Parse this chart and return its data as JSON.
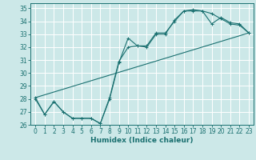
{
  "title": "",
  "xlabel": "Humidex (Indice chaleur)",
  "ylabel": "",
  "bg_color": "#cce8e8",
  "grid_color": "#ffffff",
  "line_color": "#1a7070",
  "xlim": [
    -0.5,
    23.5
  ],
  "ylim": [
    26,
    35.4
  ],
  "xticks": [
    0,
    1,
    2,
    3,
    4,
    5,
    6,
    7,
    8,
    9,
    10,
    11,
    12,
    13,
    14,
    15,
    16,
    17,
    18,
    19,
    20,
    21,
    22,
    23
  ],
  "yticks": [
    26,
    27,
    28,
    29,
    30,
    31,
    32,
    33,
    34,
    35
  ],
  "line1_x": [
    0,
    1,
    2,
    3,
    4,
    5,
    6,
    7,
    8,
    9,
    10,
    11,
    12,
    13,
    14,
    15,
    16,
    17,
    18,
    19,
    20,
    21,
    22,
    23
  ],
  "line1_y": [
    28.0,
    26.8,
    27.8,
    27.0,
    26.5,
    26.5,
    26.5,
    26.1,
    28.0,
    30.8,
    32.7,
    32.1,
    32.1,
    33.1,
    33.1,
    34.0,
    34.8,
    34.8,
    34.8,
    34.6,
    34.2,
    33.8,
    33.7,
    33.1
  ],
  "line2_x": [
    0,
    1,
    2,
    3,
    4,
    5,
    6,
    7,
    8,
    9,
    10,
    11,
    12,
    13,
    14,
    15,
    16,
    17,
    18,
    19,
    20,
    21,
    22,
    23
  ],
  "line2_y": [
    28.1,
    26.8,
    27.8,
    27.0,
    26.5,
    26.5,
    26.5,
    26.1,
    28.1,
    30.9,
    32.0,
    32.1,
    32.0,
    33.0,
    33.0,
    34.1,
    34.8,
    34.9,
    34.8,
    33.8,
    34.3,
    33.9,
    33.8,
    33.1
  ],
  "line3_x": [
    0,
    23
  ],
  "line3_y": [
    28.1,
    33.1
  ],
  "marker_size": 2.5,
  "tick_fontsize": 5.5,
  "xlabel_fontsize": 6.5
}
